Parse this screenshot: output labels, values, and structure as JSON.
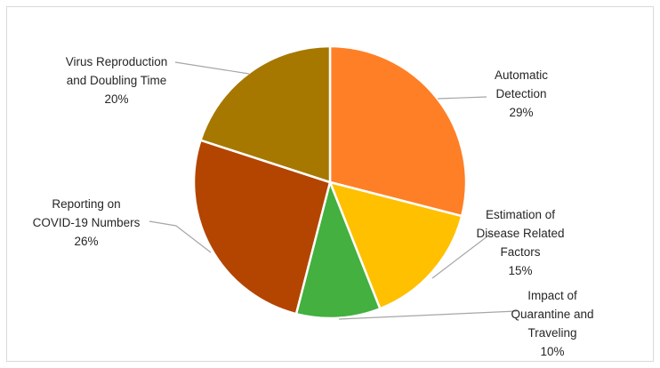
{
  "chart_data": {
    "type": "pie",
    "title": "",
    "legend": "none",
    "slices": [
      {
        "name": "Automatic Detection",
        "label_lines": [
          "Automatic",
          "Detection"
        ],
        "percent_label": "29%",
        "value": 29,
        "color": "#FF7F27"
      },
      {
        "name": "Estimation of Disease Related Factors",
        "label_lines": [
          "Estimation of",
          "Disease Related",
          "Factors"
        ],
        "percent_label": "15%",
        "value": 15,
        "color": "#FFC000"
      },
      {
        "name": "Impact of Quarantine and Traveling",
        "label_lines": [
          "Impact of",
          "Quarantine and",
          "Traveling"
        ],
        "percent_label": "10%",
        "value": 10,
        "color": "#43B040"
      },
      {
        "name": "Reporting on COVID-19 Numbers",
        "label_lines": [
          "Reporting on",
          "COVID-19 Numbers"
        ],
        "percent_label": "26%",
        "value": 26,
        "color": "#B34500"
      },
      {
        "name": "Virus Reproduction and Doubling Time",
        "label_lines": [
          "Virus Reproduction",
          "and Doubling Time"
        ],
        "percent_label": "20%",
        "value": 20,
        "color": "#A67800"
      }
    ]
  }
}
